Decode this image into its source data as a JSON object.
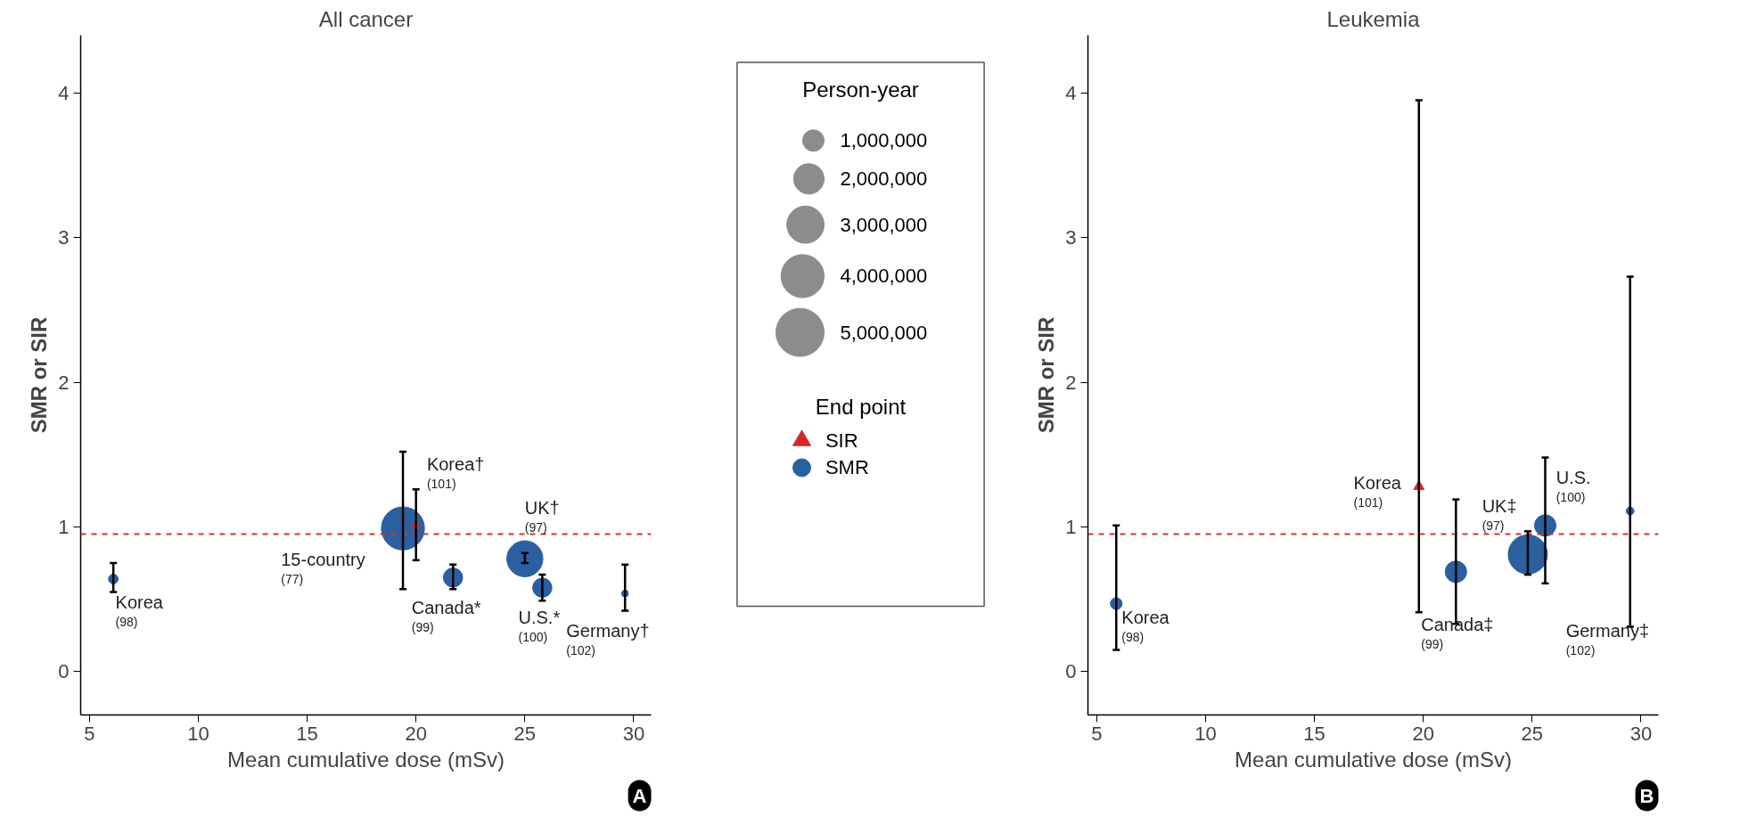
{
  "chart_data": [
    {
      "type": "bubble",
      "title": "All cancer",
      "xlabel": "Mean cumulative dose (mSv)",
      "ylabel": "SMR or SIR",
      "xlim": [
        4.6,
        30.8
      ],
      "ylim": [
        -0.3,
        4.4
      ],
      "xticks": [
        5,
        10,
        15,
        20,
        25,
        30
      ],
      "yticks": [
        0,
        1,
        2,
        3,
        4
      ],
      "legend": "right",
      "legend_title": "Person-year",
      "size_legend": [
        {
          "value": 1000000,
          "label": "1,000,000"
        },
        {
          "value": 2000000,
          "label": "2,000,000"
        },
        {
          "value": 3000000,
          "label": "3,000,000"
        },
        {
          "value": 4000000,
          "label": "4,000,000"
        },
        {
          "value": 5000000,
          "label": "5,000,000"
        }
      ],
      "series": [
        {
          "color": "#2b5f9f",
          "marker": "circle",
          "x": [
            6.1,
            19.4,
            21.7,
            25.0,
            25.8,
            29.6
          ],
          "values": [
            0.64,
            0.99,
            0.65,
            0.78,
            0.58,
            0.54
          ],
          "sizes": [
            200000,
            4000000,
            800000,
            2800000,
            800000,
            100000
          ],
          "errors": [
            [
              0.55,
              0.75
            ],
            [
              0.57,
              1.52
            ],
            [
              0.57,
              0.74
            ],
            [
              0.75,
              0.82
            ],
            [
              0.49,
              0.67
            ],
            [
              0.42,
              0.74
            ]
          ]
        },
        {
          "color": "#d7262d",
          "marker": "triangle",
          "x": [
            20.0
          ],
          "values": [
            1.01
          ],
          "sizes": [
            100000
          ],
          "errors": [
            [
              0.77,
              1.26
            ]
          ]
        }
      ],
      "ref_lines": [
        {
          "axis": "y",
          "value": 0.95,
          "color": "#d9302f",
          "line_style": "dashed"
        }
      ],
      "annotations": [
        {
          "text": "Korea\n(98)",
          "x": 6.1,
          "y": 0.64
        },
        {
          "text": "15-country\n(77)",
          "x": 19.4,
          "y": 0.99
        },
        {
          "text": "Korea†\n(101)",
          "x": 20.0,
          "y": 1.01
        },
        {
          "text": "Canada*\n(99)",
          "x": 21.7,
          "y": 0.65
        },
        {
          "text": "UK†\n(97)",
          "x": 25.0,
          "y": 0.78
        },
        {
          "text": "U.S.*\n(100)",
          "x": 25.8,
          "y": 0.58
        },
        {
          "text": "Germany†\n(102)",
          "x": 29.6,
          "y": 0.54
        },
        "A"
      ]
    },
    {
      "type": "bubble",
      "title": "Leukemia",
      "xlabel": "Mean cumulative dose (mSv)",
      "ylabel": "SMR or SIR",
      "xlim": [
        4.6,
        30.8
      ],
      "ylim": [
        -0.3,
        4.4
      ],
      "xticks": [
        5,
        10,
        15,
        20,
        25,
        30
      ],
      "yticks": [
        0,
        1,
        2,
        3,
        4
      ],
      "legend": "left",
      "legend_title": "End point",
      "series": [
        {
          "name": "SIR",
          "color": "#d7262d",
          "marker": "triangle",
          "x": [
            19.8
          ],
          "values": [
            1.28
          ],
          "sizes": [
            0.04
          ],
          "errors": [
            [
              0.41,
              3.95
            ]
          ]
        },
        {
          "name": "SMR",
          "color": "#2b5f9f",
          "marker": "circle",
          "x": [
            5.9,
            21.5,
            24.8,
            25.6,
            29.5
          ],
          "values": [
            0.47,
            0.69,
            0.81,
            1.01,
            1.11
          ],
          "sizes": [
            0.09,
            0.3,
            1,
            0.3,
            0.04
          ],
          "errors": [
            [
              0.15,
              1.01
            ],
            [
              0.33,
              1.19
            ],
            [
              0.67,
              0.97
            ],
            [
              0.61,
              1.48
            ],
            [
              0.31,
              2.73
            ]
          ]
        }
      ],
      "ref_lines": [
        {
          "axis": "y",
          "value": 0.95,
          "color": "#d9302f",
          "line_style": "dashed"
        }
      ],
      "annotations": [
        {
          "text": "Korea\n(98)",
          "x": 5.9,
          "y": 0.47
        },
        {
          "text": "Korea\n(101)",
          "x": 19.8,
          "y": 1.28
        },
        {
          "text": "Canada‡\n(99)",
          "x": 21.5,
          "y": 0.69
        },
        {
          "text": "UK‡\n(97)",
          "x": 24.8,
          "y": 0.81
        },
        {
          "text": "U.S.\n(100)",
          "x": 25.6,
          "y": 1.01
        },
        {
          "text": "Germany‡\n(102)",
          "x": 29.5,
          "y": 0.31
        },
        "B"
      ]
    }
  ]
}
